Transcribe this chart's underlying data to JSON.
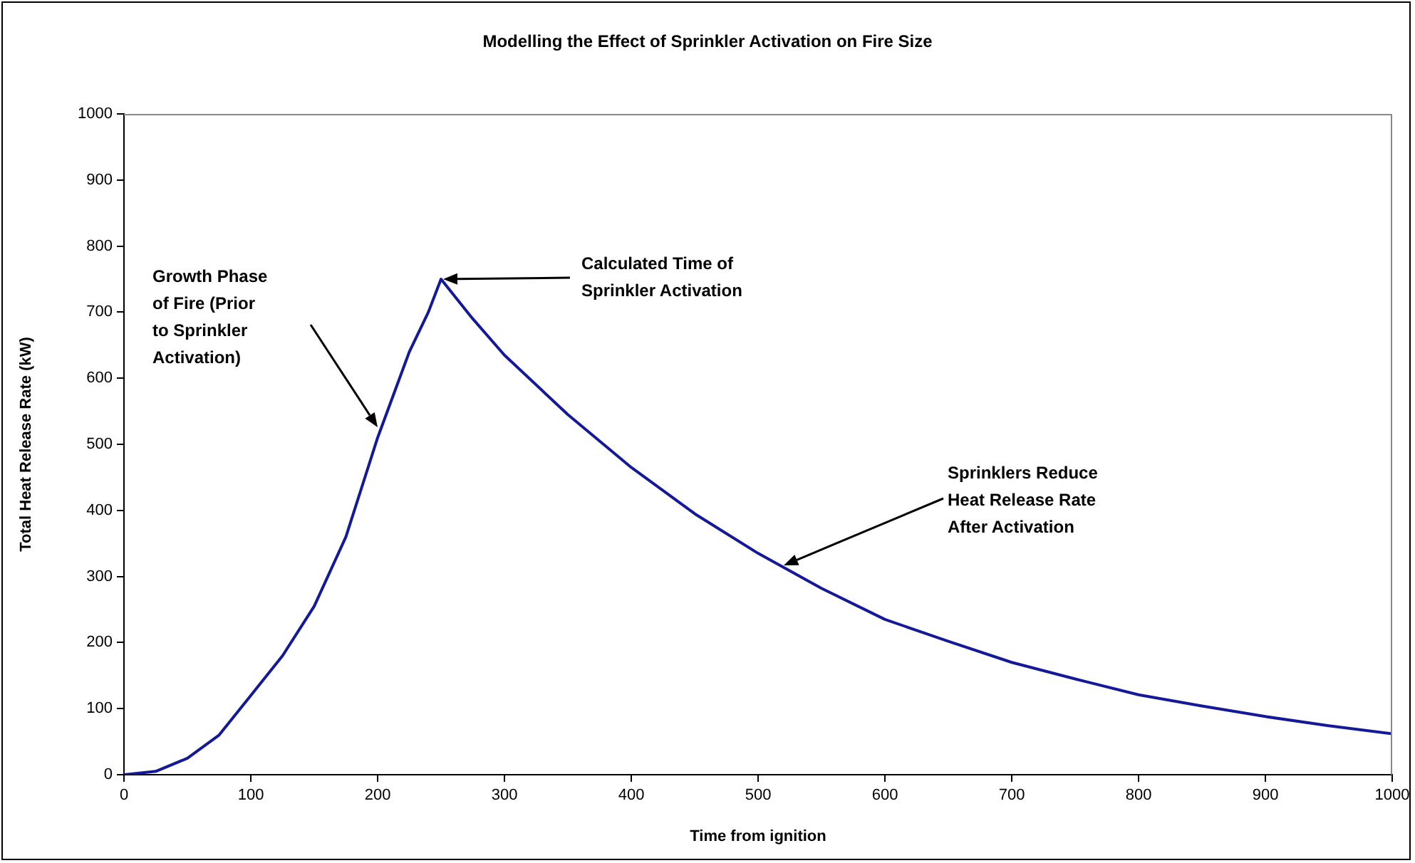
{
  "chart_data": {
    "type": "line",
    "title": "Modelling the Effect of Sprinkler Activation on Fire Size",
    "xlabel": "Time from ignition",
    "ylabel": "Total Heat Release Rate (kW)",
    "x": [
      0,
      25,
      50,
      75,
      100,
      125,
      150,
      175,
      200,
      225,
      240,
      250,
      275,
      300,
      350,
      400,
      450,
      500,
      550,
      600,
      650,
      700,
      750,
      800,
      850,
      900,
      950,
      1000
    ],
    "series": [
      {
        "color": "#14199a",
        "values": [
          0,
          5,
          25,
          60,
          120,
          180,
          255,
          360,
          510,
          640,
          700,
          750,
          690,
          635,
          545,
          465,
          395,
          335,
          282,
          235,
          202,
          170,
          145,
          121,
          104,
          88,
          74,
          62
        ]
      }
    ],
    "xlim": [
      0,
      1000
    ],
    "xticks": [
      0,
      100,
      200,
      300,
      400,
      500,
      600,
      700,
      800,
      900,
      1000
    ],
    "ylim": [
      0,
      1000
    ],
    "yticks": [
      0,
      100,
      200,
      300,
      400,
      500,
      600,
      700,
      800,
      900,
      1000
    ],
    "grid": false,
    "legend": false,
    "marker": "none",
    "line_style": "solid",
    "annotations": [
      "Growth Phase\nof Fire (Prior\nto Sprinkler\nActivation)",
      "Calculated Time of\nSprinkler Activation",
      "Sprinklers Reduce\nHeat Release Rate\nAfter Activation"
    ]
  }
}
